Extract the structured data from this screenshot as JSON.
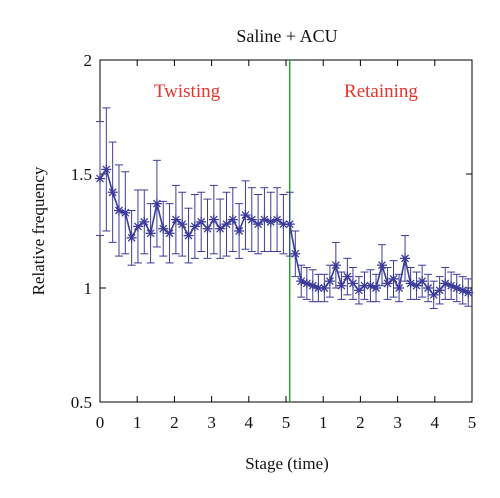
{
  "chart_data": {
    "type": "line",
    "title": "Saline + ACU",
    "xlabel": "Stage (time)",
    "ylabel": "Relative frequency",
    "ylim": [
      0.5,
      2
    ],
    "yticks": [
      "0.5",
      "1",
      "1.5",
      "2"
    ],
    "xticks": [
      "0",
      "1",
      "2",
      "3",
      "4",
      "5",
      "1",
      "2",
      "3",
      "4",
      "5"
    ],
    "grid": false,
    "annotations": [
      {
        "text": "Twisting",
        "color": "#e8322d"
      },
      {
        "text": "Retaining",
        "color": "#e8322d"
      }
    ],
    "divider": {
      "x": 5.1,
      "color": "#2ca02c"
    },
    "colors": {
      "series": "#3c3c9a",
      "divider": "#2ca02c",
      "annotation": "#e8322d"
    },
    "series": [
      {
        "x": [
          0.0,
          0.17,
          0.34,
          0.51,
          0.68,
          0.85,
          1.02,
          1.19,
          1.36,
          1.53,
          1.7,
          1.87,
          2.04,
          2.21,
          2.38,
          2.55,
          2.72,
          2.89,
          3.06,
          3.23,
          3.4,
          3.57,
          3.74,
          3.91,
          4.08,
          4.25,
          4.42,
          4.59,
          4.76,
          4.93,
          5.1,
          5.25,
          5.41,
          5.56,
          5.72,
          5.87,
          6.03,
          6.18,
          6.34,
          6.49,
          6.65,
          6.8,
          6.96,
          7.11,
          7.27,
          7.42,
          7.58,
          7.73,
          7.89,
          8.04,
          8.2,
          8.35,
          8.51,
          8.66,
          8.82,
          8.97,
          9.13,
          9.28,
          9.44,
          9.59,
          9.75,
          9.9
        ],
        "y": [
          1.48,
          1.52,
          1.42,
          1.34,
          1.33,
          1.22,
          1.27,
          1.29,
          1.24,
          1.37,
          1.26,
          1.24,
          1.3,
          1.28,
          1.23,
          1.27,
          1.29,
          1.26,
          1.3,
          1.26,
          1.28,
          1.3,
          1.25,
          1.32,
          1.3,
          1.28,
          1.3,
          1.29,
          1.3,
          1.28,
          1.28,
          1.15,
          1.03,
          1.02,
          1.01,
          1.0,
          1.0,
          1.03,
          1.1,
          1.01,
          1.05,
          1.02,
          0.99,
          1.01,
          1.01,
          1.0,
          1.1,
          1.02,
          1.04,
          1.0,
          1.13,
          1.02,
          1.01,
          1.03,
          1.0,
          0.97,
          0.99,
          1.02,
          1.01,
          1.0,
          0.99,
          0.98
        ],
        "err": [
          0.25,
          0.27,
          0.22,
          0.2,
          0.18,
          0.12,
          0.16,
          0.14,
          0.13,
          0.19,
          0.12,
          0.13,
          0.15,
          0.14,
          0.12,
          0.14,
          0.13,
          0.13,
          0.15,
          0.13,
          0.14,
          0.14,
          0.12,
          0.15,
          0.14,
          0.13,
          0.14,
          0.13,
          0.14,
          0.13,
          0.14,
          0.1,
          0.07,
          0.07,
          0.07,
          0.06,
          0.06,
          0.07,
          0.1,
          0.06,
          0.08,
          0.07,
          0.06,
          0.06,
          0.07,
          0.06,
          0.09,
          0.07,
          0.08,
          0.06,
          0.1,
          0.07,
          0.06,
          0.07,
          0.06,
          0.06,
          0.06,
          0.07,
          0.06,
          0.06,
          0.06,
          0.06
        ]
      }
    ]
  }
}
